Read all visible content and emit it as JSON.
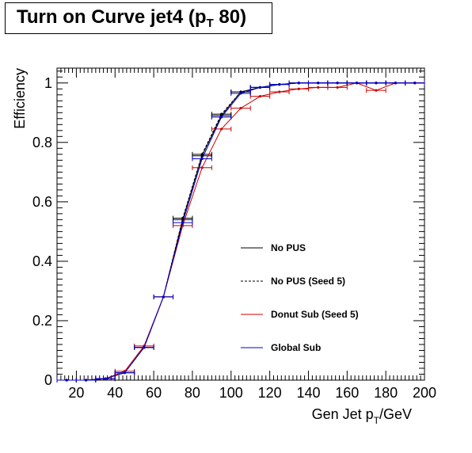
{
  "chart_data": {
    "type": "line",
    "title_main": "Turn on Curve jet4 (p",
    "title_sub": "T",
    "title_end": " 80)",
    "xlabel_main": "Gen Jet p",
    "xlabel_sub": "T",
    "xlabel_end": "/GeV",
    "ylabel": "Efficiency",
    "xlim": [
      10,
      200
    ],
    "ylim": [
      0,
      1.05
    ],
    "x_ticks": [
      "20",
      "40",
      "60",
      "80",
      "100",
      "120",
      "140",
      "160",
      "180",
      "200"
    ],
    "y_ticks": [
      "0",
      "0.2",
      "0.4",
      "0.6",
      "0.8",
      "1"
    ],
    "x_err": 5,
    "grid": false,
    "legend_position": "center-right",
    "series": [
      {
        "name": "No PUS",
        "color": "#000000",
        "style": "solid",
        "x": [
          15,
          25,
          35,
          45,
          55,
          65,
          75,
          85,
          95,
          105,
          115,
          125,
          135,
          145,
          155,
          165,
          175,
          185,
          195
        ],
        "y": [
          0.0,
          0.0,
          0.005,
          0.025,
          0.11,
          0.28,
          0.54,
          0.755,
          0.89,
          0.97,
          0.985,
          0.995,
          1.0,
          1.0,
          1.0,
          1.0,
          1.0,
          1.0,
          1.0
        ]
      },
      {
        "name": "No PUS (Seed 5)",
        "color": "#000000",
        "style": "dashed",
        "x": [
          15,
          25,
          35,
          45,
          55,
          65,
          75,
          85,
          95,
          105,
          115,
          125,
          135,
          145,
          155,
          165,
          175,
          185,
          195
        ],
        "y": [
          0.0,
          0.0,
          0.005,
          0.025,
          0.11,
          0.28,
          0.545,
          0.76,
          0.895,
          0.97,
          0.985,
          0.995,
          1.0,
          1.0,
          1.0,
          1.0,
          1.0,
          1.0,
          1.0
        ]
      },
      {
        "name": "Donut Sub (Seed 5)",
        "color": "#cc0000",
        "style": "solid",
        "x": [
          15,
          25,
          35,
          45,
          55,
          65,
          75,
          85,
          95,
          105,
          115,
          125,
          135,
          145,
          155,
          165,
          175,
          185,
          195
        ],
        "y": [
          0.0,
          0.0,
          0.005,
          0.03,
          0.115,
          0.28,
          0.52,
          0.715,
          0.845,
          0.915,
          0.955,
          0.97,
          0.98,
          0.985,
          0.985,
          1.0,
          0.975,
          1.0,
          1.0
        ]
      },
      {
        "name": "Global Sub",
        "color": "#0000cc",
        "style": "solid",
        "x": [
          15,
          25,
          35,
          45,
          55,
          65,
          75,
          85,
          95,
          105,
          115,
          125,
          135,
          145,
          155,
          165,
          175,
          185,
          195
        ],
        "y": [
          0.0,
          0.0,
          0.005,
          0.025,
          0.11,
          0.28,
          0.53,
          0.745,
          0.885,
          0.965,
          0.985,
          0.995,
          1.0,
          1.0,
          1.0,
          1.0,
          1.0,
          1.0,
          1.0
        ]
      }
    ]
  }
}
